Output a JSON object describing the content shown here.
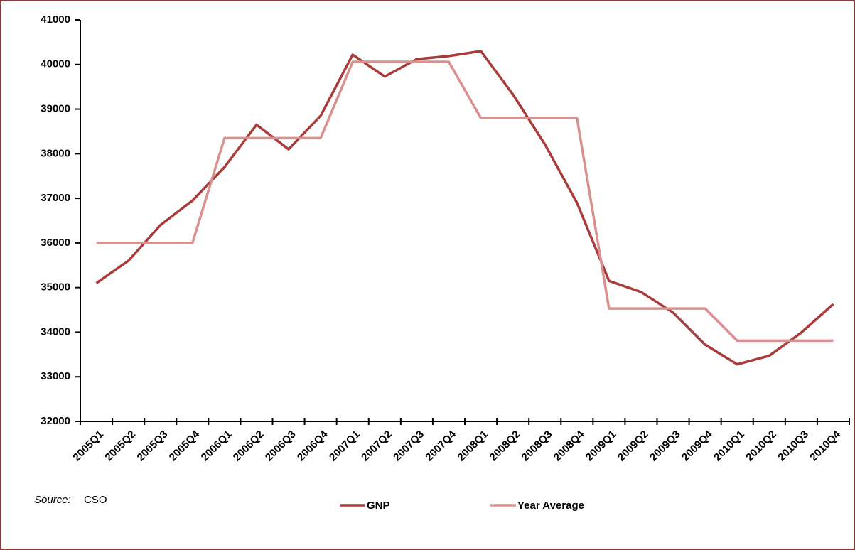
{
  "chart_data": {
    "type": "line",
    "categories": [
      "2005Q1",
      "2005Q2",
      "2005Q3",
      "2005Q4",
      "2006Q1",
      "2006Q2",
      "2006Q3",
      "2006Q4",
      "2007Q1",
      "2007Q2",
      "2007Q3",
      "2007Q4",
      "2008Q1",
      "2008Q2",
      "2008Q3",
      "2008Q4",
      "2009Q1",
      "2009Q2",
      "2009Q3",
      "2009Q4",
      "2010Q1",
      "2010Q2",
      "2010Q3",
      "2010Q4"
    ],
    "series": [
      {
        "name": "GNP",
        "color": "#a93c3a",
        "values": [
          35100,
          35600,
          36400,
          36950,
          37700,
          38650,
          38100,
          38850,
          40220,
          39730,
          40120,
          40190,
          40300,
          39330,
          38210,
          36900,
          35150,
          34900,
          34440,
          33720,
          33280,
          33470,
          33990,
          34630
        ]
      },
      {
        "name": "Year Average",
        "color": "#d9918f",
        "values": [
          36000,
          36000,
          36000,
          36000,
          38350,
          38350,
          38350,
          38350,
          40060,
          40060,
          40060,
          40060,
          38800,
          38800,
          38800,
          38800,
          34530,
          34530,
          34530,
          34530,
          33810,
          33810,
          33810,
          33810
        ]
      }
    ],
    "ylim": [
      32000,
      41000
    ],
    "yticks": [
      32000,
      33000,
      34000,
      35000,
      36000,
      37000,
      38000,
      39000,
      40000,
      41000
    ],
    "grid": false,
    "legend": "bottom",
    "source_label": "Source:",
    "source": "CSO"
  }
}
